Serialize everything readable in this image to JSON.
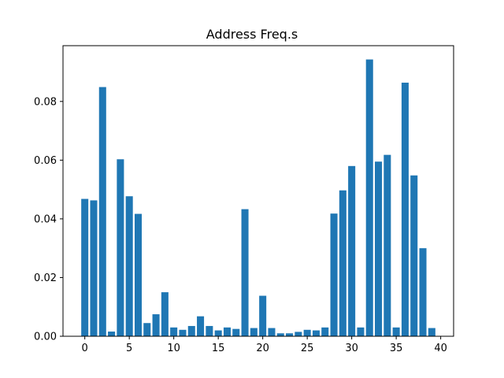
{
  "chart_data": {
    "type": "bar",
    "title": "Address Freq.s",
    "xlabel": "",
    "ylabel": "",
    "x": [
      0,
      1,
      2,
      3,
      4,
      5,
      6,
      7,
      8,
      9,
      10,
      11,
      12,
      13,
      14,
      15,
      16,
      17,
      18,
      19,
      20,
      21,
      22,
      23,
      24,
      25,
      26,
      27,
      28,
      29,
      30,
      31,
      32,
      33,
      34,
      35,
      36,
      37,
      38,
      39
    ],
    "values": [
      0.0468,
      0.0463,
      0.0849,
      0.0016,
      0.0603,
      0.0477,
      0.0417,
      0.0045,
      0.0075,
      0.015,
      0.003,
      0.0022,
      0.0035,
      0.0068,
      0.0035,
      0.002,
      0.003,
      0.0025,
      0.0433,
      0.0028,
      0.0138,
      0.0028,
      0.001,
      0.001,
      0.0015,
      0.0022,
      0.002,
      0.003,
      0.0418,
      0.0497,
      0.058,
      0.003,
      0.0943,
      0.0595,
      0.0618,
      0.003,
      0.0864,
      0.0548,
      0.03,
      0.0028
    ],
    "xlim": [
      -2.45,
      41.45
    ],
    "ylim": [
      0,
      0.099
    ],
    "xticks": [
      0,
      5,
      10,
      15,
      20,
      25,
      30,
      35,
      40
    ],
    "xtick_labels": [
      "0",
      "5",
      "10",
      "15",
      "20",
      "25",
      "30",
      "35",
      "40"
    ],
    "yticks": [
      0,
      0.02,
      0.04,
      0.06,
      0.08
    ],
    "ytick_labels": [
      "0.00",
      "0.02",
      "0.04",
      "0.06",
      "0.08"
    ],
    "bar_color": "#1f77b4",
    "grid": false,
    "legend": "none"
  }
}
